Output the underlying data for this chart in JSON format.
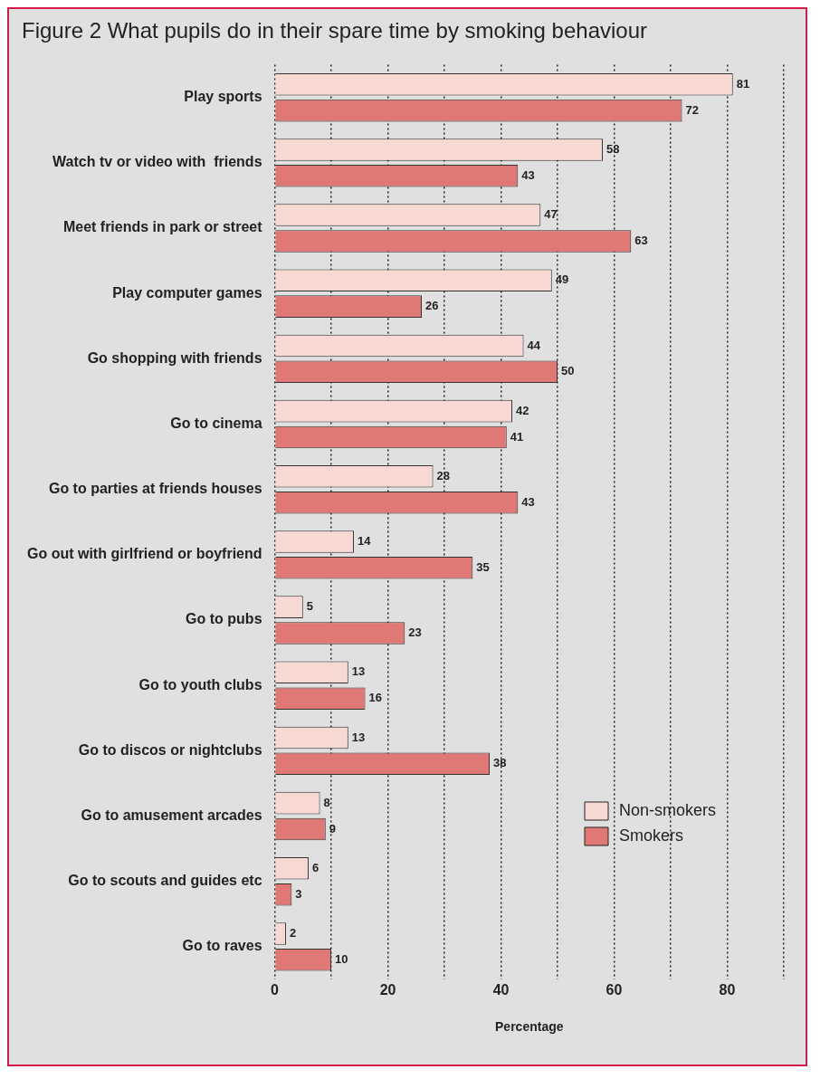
{
  "chart_data": {
    "type": "bar",
    "orientation": "horizontal",
    "title": "Figure 2  What pupils do in their spare time by smoking behaviour",
    "xlabel": "Percentage",
    "categories": [
      "Play sports",
      "Watch tv or video with  friends",
      "Meet friends in park or street",
      "Play computer games",
      "Go shopping with friends",
      "Go to cinema",
      "Go to parties at friends houses",
      "Go out with girlfriend or boyfriend",
      "Go to pubs",
      "Go to youth clubs",
      "Go to discos or nightclubs",
      "Go to amusement arcades",
      "Go to scouts and guides etc",
      "Go to raves"
    ],
    "series": [
      {
        "name": "Non-smokers",
        "color": "#f8d8d2",
        "values": [
          81,
          58,
          47,
          49,
          44,
          42,
          28,
          14,
          5,
          13,
          13,
          8,
          6,
          2
        ]
      },
      {
        "name": "Smokers",
        "color": "#e07876",
        "values": [
          72,
          43,
          63,
          26,
          50,
          41,
          43,
          35,
          23,
          16,
          38,
          9,
          3,
          10
        ]
      }
    ],
    "xlim": [
      0,
      90
    ],
    "xticks": [
      0,
      {
        "value": 10,
        "label": null
      },
      20,
      {
        "value": 30,
        "label": null
      },
      40,
      {
        "value": 50,
        "label": null
      },
      60,
      {
        "value": 70,
        "label": null
      },
      80,
      {
        "value": 90,
        "label": null
      }
    ],
    "grid": "x",
    "line_style": "dotted",
    "legend": "bottom right",
    "data_labels": true
  }
}
